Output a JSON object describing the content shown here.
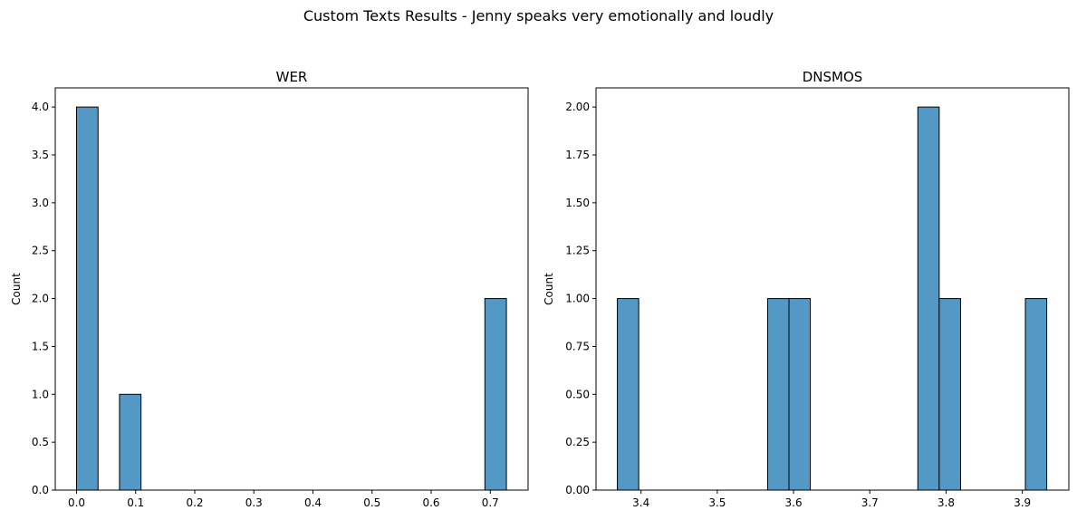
{
  "suptitle": "Custom Texts Results - Jenny speaks very emotionally and loudly",
  "chart_data": [
    {
      "type": "bar",
      "title": "WER",
      "xlabel": "",
      "ylabel": "Count",
      "xlim": [
        -0.036,
        0.764
      ],
      "ylim": [
        0,
        4.2
      ],
      "xticks": [
        0.0,
        0.1,
        0.2,
        0.3,
        0.4,
        0.5,
        0.6,
        0.7
      ],
      "xtick_labels": [
        "0.0",
        "0.1",
        "0.2",
        "0.3",
        "0.4",
        "0.5",
        "0.6",
        "0.7"
      ],
      "yticks": [
        0.0,
        0.5,
        1.0,
        1.5,
        2.0,
        2.5,
        3.0,
        3.5,
        4.0
      ],
      "ytick_labels": [
        "0.0",
        "0.5",
        "1.0",
        "1.5",
        "2.0",
        "2.5",
        "3.0",
        "3.5",
        "4.0"
      ],
      "bars": [
        {
          "x0": 0.0,
          "x1": 0.0364,
          "count": 4
        },
        {
          "x0": 0.0727,
          "x1": 0.1091,
          "count": 1
        },
        {
          "x0": 0.6909,
          "x1": 0.7273,
          "count": 2
        }
      ],
      "color": "#5498c6"
    },
    {
      "type": "bar",
      "title": "DNSMOS",
      "xlabel": "",
      "ylabel": "Count",
      "xlim": [
        3.341,
        3.961
      ],
      "ylim": [
        0,
        2.1
      ],
      "xticks": [
        3.4,
        3.5,
        3.6,
        3.7,
        3.8,
        3.9
      ],
      "xtick_labels": [
        "3.4",
        "3.5",
        "3.6",
        "3.7",
        "3.8",
        "3.9"
      ],
      "yticks": [
        0.0,
        0.25,
        0.5,
        0.75,
        1.0,
        1.25,
        1.5,
        1.75,
        2.0
      ],
      "ytick_labels": [
        "0.00",
        "0.25",
        "0.50",
        "0.75",
        "1.00",
        "1.25",
        "1.50",
        "1.75",
        "2.00"
      ],
      "bars": [
        {
          "x0": 3.369,
          "x1": 3.397,
          "count": 1
        },
        {
          "x0": 3.566,
          "x1": 3.594,
          "count": 1
        },
        {
          "x0": 3.594,
          "x1": 3.622,
          "count": 1
        },
        {
          "x0": 3.763,
          "x1": 3.791,
          "count": 2
        },
        {
          "x0": 3.791,
          "x1": 3.819,
          "count": 1
        },
        {
          "x0": 3.904,
          "x1": 3.932,
          "count": 1
        }
      ],
      "color": "#5498c6"
    }
  ]
}
